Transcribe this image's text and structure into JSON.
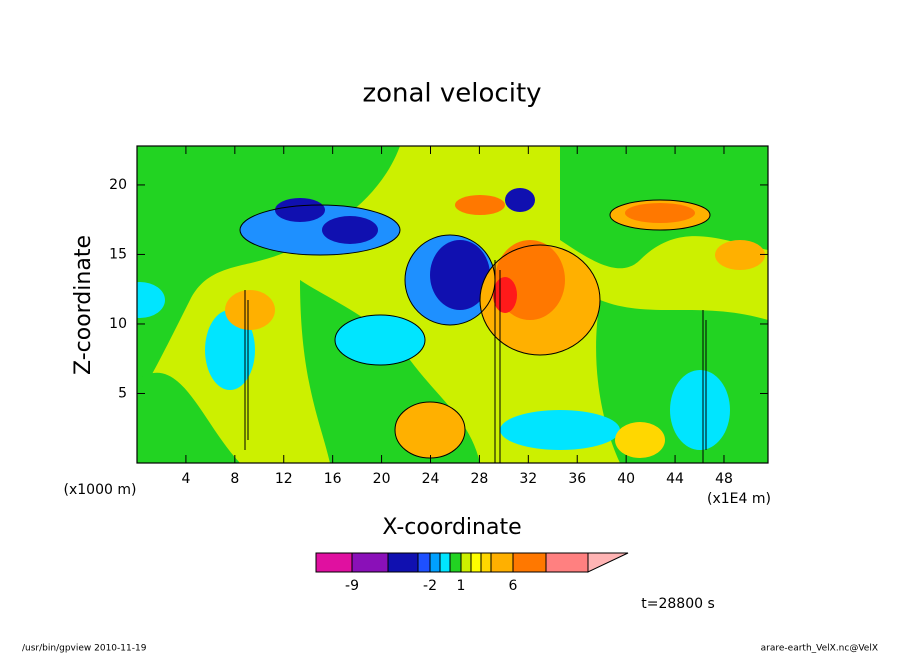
{
  "chart_data": {
    "type": "contour",
    "title": "zonal velocity",
    "xlabel": "X-coordinate",
    "ylabel": "Z-coordinate",
    "y_unit": "(x1000 m)",
    "x_unit": "(x1E4 m)",
    "xlim": [
      0,
      51.6
    ],
    "xticks": [
      4,
      8,
      12,
      16,
      20,
      24,
      28,
      32,
      36,
      40,
      44,
      48
    ],
    "ylim": [
      0,
      22.8
    ],
    "yticks": [
      5,
      10,
      15,
      20
    ],
    "colorbar_labels": [
      "-9",
      "-2",
      "1",
      "6"
    ],
    "time_label": "t=28800 s",
    "footer_left": "/usr/bin/gpview  2010-11-19",
    "footer_right": "arare-earth_VelX.nc@VelX"
  }
}
